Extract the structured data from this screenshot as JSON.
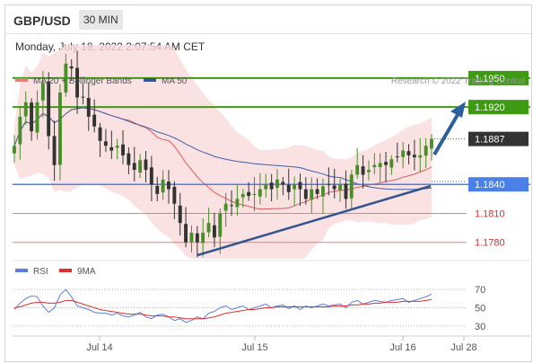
{
  "header": {
    "pair": "GBP/USD",
    "timeframe": "30 MIN",
    "datetime": "Monday, July 18, 2022 2:07:54 AM CET"
  },
  "colors": {
    "up": "#4a8e2a",
    "down": "#333333",
    "ma20": "#e05a5a",
    "band_fill": "#fadbdb",
    "ma50": "#3e5fa8",
    "trend": "#34558f",
    "resistance": "#3e9a13",
    "support_blue": "#4a80e8",
    "support_red": "#e08080",
    "rsi": "#5b7fe0",
    "rsi_ma": "#e03030",
    "arrow": "#2c5f9e",
    "price_box": "#333333"
  },
  "chart_data": [
    {
      "type": "candlestick",
      "legend": [
        {
          "label": "MA 20 + Bollinger Bands",
          "color": "#e87c7c"
        },
        {
          "label": "MA 50",
          "color": "#34558f"
        }
      ],
      "credit": "Research © 2022 Trading Central",
      "x_ticks": [
        "Jul 14",
        "Jul 15",
        "Jul 16",
        "Jul 28"
      ],
      "levels": [
        {
          "value": 1.195,
          "label": "1.1950",
          "kind": "resistance"
        },
        {
          "value": 1.192,
          "label": "1.1920",
          "kind": "resistance"
        },
        {
          "value": 1.1887,
          "label": "1.1887",
          "kind": "last"
        },
        {
          "value": 1.184,
          "label": "1.1840",
          "kind": "support"
        },
        {
          "value": 1.181,
          "label": "1.1810",
          "kind": "support_minor"
        },
        {
          "value": 1.178,
          "label": "1.1780",
          "kind": "support_minor"
        }
      ],
      "ylim": [
        1.1763,
        1.1975
      ],
      "close": [
        1.188,
        1.191,
        1.1925,
        1.1895,
        1.1925,
        1.1945,
        1.189,
        1.186,
        1.1935,
        1.1965,
        1.196,
        1.193,
        1.193,
        1.191,
        1.19,
        1.1885,
        1.188,
        1.1875,
        1.188,
        1.187,
        1.186,
        1.1855,
        1.1865,
        1.1855,
        1.184,
        1.183,
        1.1845,
        1.1835,
        1.182,
        1.18,
        1.178,
        1.179,
        1.178,
        1.179,
        1.18,
        1.1785,
        1.181,
        1.182,
        1.1818,
        1.1825,
        1.183,
        1.1828,
        1.183,
        1.1835,
        1.184,
        1.1835,
        1.1845,
        1.184,
        1.1832,
        1.184,
        1.1835,
        1.1825,
        1.1835,
        1.183,
        1.1838,
        1.184,
        1.1835,
        1.184,
        1.1825,
        1.185,
        1.186,
        1.185,
        1.1855,
        1.186,
        1.1862,
        1.186,
        1.1866,
        1.1868,
        1.1875,
        1.187,
        1.1868,
        1.187,
        1.188,
        1.1887
      ]
    },
    {
      "type": "line",
      "legend": [
        {
          "label": "RSI",
          "color": "#5b7fe0"
        },
        {
          "label": "9MA",
          "color": "#e03030"
        }
      ],
      "levels": [
        70,
        50,
        30
      ],
      "ylim": [
        20,
        80
      ],
      "series": [
        {
          "name": "RSI",
          "values": [
            48,
            55,
            60,
            63,
            62,
            52,
            45,
            50,
            64,
            70,
            62,
            52,
            50,
            48,
            45,
            44,
            44,
            42,
            44,
            41,
            40,
            42,
            45,
            40,
            38,
            42,
            43,
            40,
            36,
            38,
            34,
            36,
            40,
            38,
            44,
            46,
            50,
            52,
            48,
            50,
            52,
            48,
            50,
            52,
            54,
            50,
            52,
            53,
            49,
            52,
            48,
            52,
            50,
            52,
            54,
            52,
            53,
            54,
            50,
            56,
            58,
            54,
            56,
            58,
            57,
            56,
            58,
            59,
            60,
            56,
            58,
            60,
            62,
            65
          ]
        },
        {
          "name": "9MA",
          "values": [
            50,
            51,
            53,
            55,
            56,
            56,
            55,
            55,
            56,
            58,
            58,
            56,
            54,
            52,
            50,
            48,
            47,
            46,
            45,
            44,
            43,
            43,
            43,
            42,
            41,
            41,
            41,
            40,
            40,
            39,
            38,
            38,
            38,
            38,
            39,
            40,
            42,
            44,
            45,
            46,
            47,
            48,
            48,
            49,
            50,
            50,
            51,
            51,
            51,
            51,
            51,
            51,
            51,
            51,
            51,
            51,
            52,
            52,
            52,
            53,
            53,
            54,
            54,
            55,
            55,
            56,
            56,
            56,
            57,
            57,
            57,
            57,
            58,
            59
          ]
        }
      ]
    }
  ]
}
